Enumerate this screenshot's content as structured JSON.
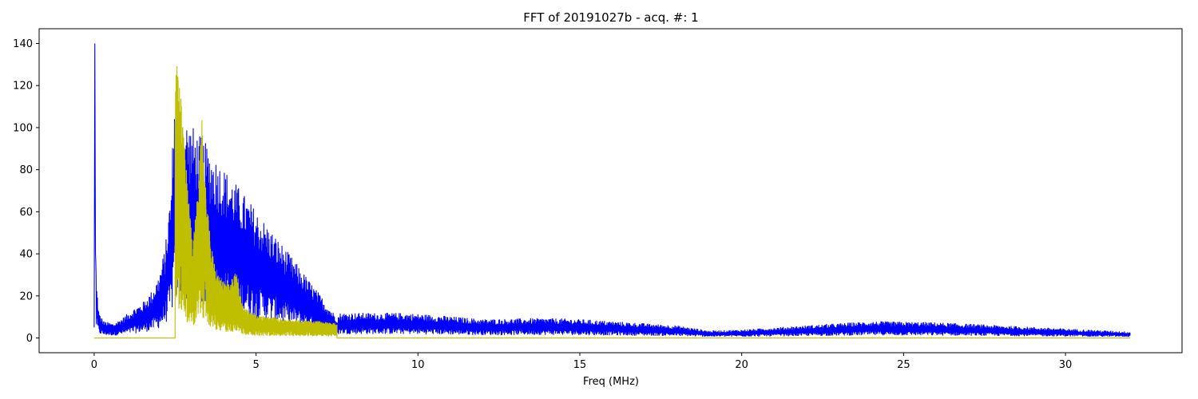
{
  "chart_data": {
    "type": "line",
    "title": "FFT of 20191027b - acq. #: 1",
    "xlabel": "Freq (MHz)",
    "ylabel": "",
    "xlim": [
      -1.7,
      33.6
    ],
    "ylim": [
      -7,
      147
    ],
    "x_ticks": [
      0,
      5,
      10,
      15,
      20,
      25,
      30
    ],
    "y_ticks": [
      0,
      20,
      40,
      60,
      80,
      100,
      120,
      140
    ],
    "grid": false,
    "colors": {
      "spectrum": "#0000ff",
      "band": "#bfbf00"
    },
    "series": [
      {
        "color": "#0000ff",
        "envelope": [
          {
            "x": 0.0,
            "y": 5
          },
          {
            "x": 0.02,
            "y": 140
          },
          {
            "x": 0.04,
            "y": 40
          },
          {
            "x": 0.08,
            "y": 25
          },
          {
            "x": 0.15,
            "y": 12
          },
          {
            "x": 0.3,
            "y": 8
          },
          {
            "x": 0.6,
            "y": 7
          },
          {
            "x": 0.9,
            "y": 10
          },
          {
            "x": 1.2,
            "y": 14
          },
          {
            "x": 1.5,
            "y": 17
          },
          {
            "x": 1.8,
            "y": 23
          },
          {
            "x": 2.0,
            "y": 30
          },
          {
            "x": 2.2,
            "y": 44
          },
          {
            "x": 2.3,
            "y": 60
          },
          {
            "x": 2.4,
            "y": 78
          },
          {
            "x": 2.45,
            "y": 115
          },
          {
            "x": 2.5,
            "y": 112
          },
          {
            "x": 7.5,
            "y": 10
          },
          {
            "x": 7.6,
            "y": 12
          },
          {
            "x": 8.5,
            "y": 12
          },
          {
            "x": 9.5,
            "y": 12
          },
          {
            "x": 10.5,
            "y": 11
          },
          {
            "x": 12,
            "y": 9
          },
          {
            "x": 14,
            "y": 9.5
          },
          {
            "x": 15,
            "y": 9
          },
          {
            "x": 16,
            "y": 8
          },
          {
            "x": 17,
            "y": 7
          },
          {
            "x": 18,
            "y": 6
          },
          {
            "x": 19,
            "y": 3.5
          },
          {
            "x": 20,
            "y": 4
          },
          {
            "x": 22,
            "y": 6
          },
          {
            "x": 24,
            "y": 8
          },
          {
            "x": 26,
            "y": 7.5
          },
          {
            "x": 28,
            "y": 6
          },
          {
            "x": 30,
            "y": 4.5
          },
          {
            "x": 32,
            "y": 3
          }
        ]
      },
      {
        "color": "#bfbf00",
        "band_start": 2.5,
        "band_end": 7.5,
        "baseline": 0,
        "envelope": [
          {
            "x": 2.5,
            "y": 120
          },
          {
            "x": 2.55,
            "y": 131
          },
          {
            "x": 2.65,
            "y": 124
          },
          {
            "x": 2.75,
            "y": 100
          },
          {
            "x": 2.9,
            "y": 70
          },
          {
            "x": 3.05,
            "y": 45
          },
          {
            "x": 3.2,
            "y": 70
          },
          {
            "x": 3.33,
            "y": 104
          },
          {
            "x": 3.45,
            "y": 70
          },
          {
            "x": 3.6,
            "y": 45
          },
          {
            "x": 3.8,
            "y": 30
          },
          {
            "x": 4.0,
            "y": 28
          },
          {
            "x": 4.2,
            "y": 25
          },
          {
            "x": 4.38,
            "y": 32
          },
          {
            "x": 4.6,
            "y": 15
          },
          {
            "x": 5.0,
            "y": 11
          },
          {
            "x": 6.0,
            "y": 9
          },
          {
            "x": 7.0,
            "y": 8
          },
          {
            "x": 7.5,
            "y": 7
          }
        ]
      }
    ]
  }
}
